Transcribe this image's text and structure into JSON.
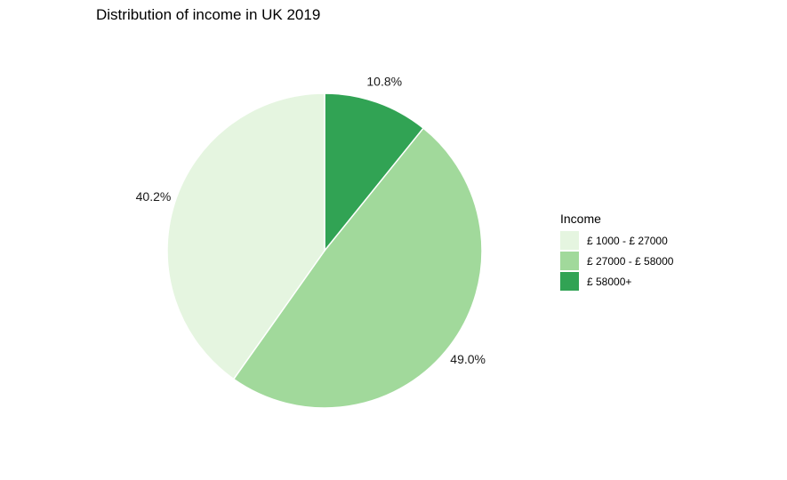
{
  "chart_data": {
    "type": "pie",
    "title": "Distribution of income in UK 2019",
    "categories": [
      "£  1000  - £ 27000",
      "£ 27000 - £ 58000",
      "£ 58000+"
    ],
    "values": [
      40.2,
      49.0,
      10.8
    ],
    "labels": [
      "40.2%",
      "49.0%",
      "10.8%"
    ],
    "colors": [
      "#e5f5e0",
      "#a1d99b",
      "#31a354"
    ],
    "legend": {
      "title": "Income",
      "placement": "right"
    },
    "start_angle_deg": 0,
    "direction": "clockwise",
    "slice_draw_order": [
      2,
      1,
      0
    ]
  }
}
